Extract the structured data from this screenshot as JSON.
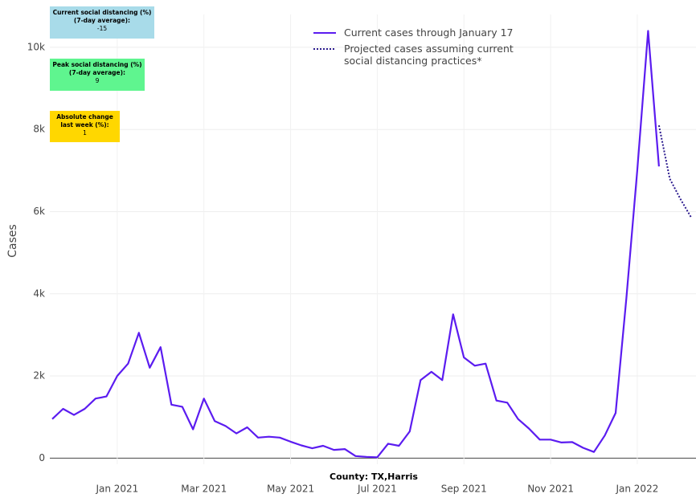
{
  "chart_data": {
    "type": "line",
    "y_label": "Cases",
    "x_label": "County: TX,Harris",
    "categories": [
      null,
      null,
      null,
      null,
      null,
      null,
      "Jan 2021",
      null,
      null,
      null,
      null,
      null,
      null,
      null,
      "Mar 2021",
      null,
      null,
      null,
      null,
      null,
      null,
      null,
      "May 2021",
      null,
      null,
      null,
      null,
      null,
      null,
      null,
      "Jul 2021",
      null,
      null,
      null,
      null,
      null,
      null,
      null,
      "Sep 2021",
      null,
      null,
      null,
      null,
      null,
      null,
      null,
      "Nov 2021",
      null,
      null,
      null,
      null,
      null,
      null,
      null,
      "Jan 2022",
      null,
      null,
      null,
      null,
      null
    ],
    "series": [
      {
        "name": "Current cases through January 17",
        "color": "#5b1cf0",
        "dash": false,
        "values": [
          950,
          1200,
          1050,
          1200,
          1450,
          1500,
          2000,
          2300,
          3050,
          2200,
          2700,
          1300,
          1250,
          700,
          1450,
          900,
          780,
          600,
          750,
          500,
          520,
          500,
          400,
          310,
          240,
          300,
          200,
          220,
          50,
          30,
          20,
          350,
          300,
          650,
          1900,
          2100,
          1900,
          3500,
          2450,
          2250,
          2300,
          1400,
          1350,
          950,
          720,
          450,
          450,
          380,
          390,
          250,
          150,
          550,
          1100,
          3900,
          7000,
          10400,
          7100,
          null,
          null,
          null
        ]
      },
      {
        "name": "Projected cases assuming current social distancing practices*",
        "color": "#2b1a8e",
        "dash": true,
        "values": [
          null,
          null,
          null,
          null,
          null,
          null,
          null,
          null,
          null,
          null,
          null,
          null,
          null,
          null,
          null,
          null,
          null,
          null,
          null,
          null,
          null,
          null,
          null,
          null,
          null,
          null,
          null,
          null,
          null,
          null,
          null,
          null,
          null,
          null,
          null,
          null,
          null,
          null,
          null,
          null,
          null,
          null,
          null,
          null,
          null,
          null,
          null,
          null,
          null,
          null,
          null,
          null,
          null,
          null,
          null,
          null,
          8100,
          6800,
          6300,
          5850
        ]
      }
    ],
    "ylim": [
      -150,
      10800
    ],
    "yticks": [
      0,
      {
        "value": 2000,
        "label": "2k"
      },
      {
        "value": 4000,
        "label": "4k"
      },
      {
        "value": 6000,
        "label": "6k"
      },
      {
        "value": 8000,
        "label": "8k"
      },
      {
        "value": 10000,
        "label": "10k"
      }
    ],
    "grid": true,
    "annotations": [
      {
        "lines": [
          "Current social distancing (%)",
          "(7-day average):",
          "-15"
        ],
        "color": "#a8dbe9"
      },
      {
        "lines": [
          "Peak social distancing (%)",
          "(7-day average):",
          "9"
        ],
        "color": "#5ff58f"
      },
      {
        "lines": [
          "Absolute change",
          "last week (%):",
          "1"
        ],
        "color": "#ffd700"
      }
    ]
  }
}
